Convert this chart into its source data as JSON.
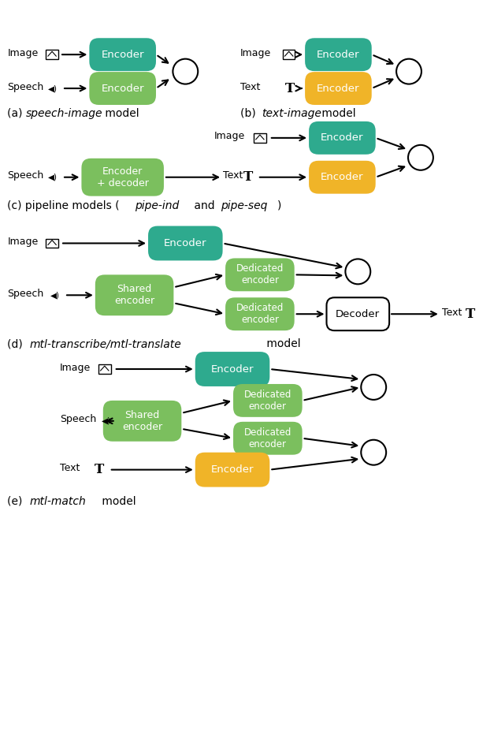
{
  "colors": {
    "teal": "#2eaa8e",
    "light_green": "#7bbf5e",
    "yellow": "#f0b428",
    "white": "#ffffff",
    "black": "#000000",
    "bg": "#ffffff"
  },
  "panel_labels": {
    "a": "(a) ",
    "a_italic": "speech-image",
    "a_rest": " model",
    "b": "(b) ",
    "b_italic": "text-image",
    "b_rest": " model",
    "c": "(c) pipeline models (",
    "c_italic1": "pipe-ind",
    "c_mid": " and ",
    "c_italic2": "pipe-seq",
    "c_rest": ")",
    "d": "(d) ",
    "d_italic": "mtl-transcribe/mtl-translate",
    "d_rest": " model",
    "e": "(e) ",
    "e_italic": "mtl-match",
    "e_rest": " model"
  }
}
